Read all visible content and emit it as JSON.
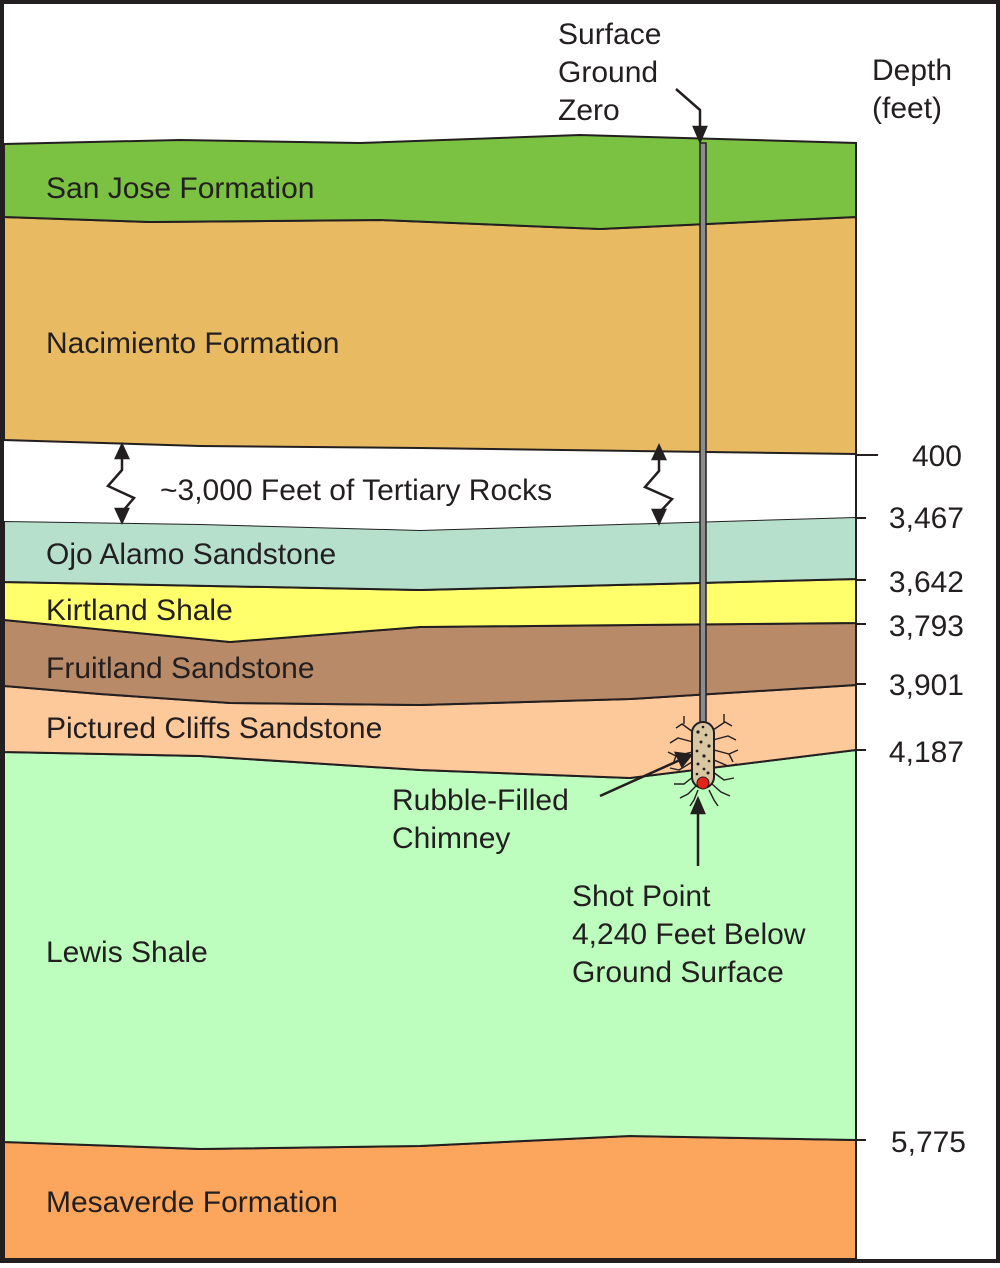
{
  "diagram": {
    "surface_label": [
      "Surface",
      "Ground",
      "Zero"
    ],
    "depth_header": [
      "Depth",
      "(feet)"
    ],
    "layers": [
      {
        "name": "San Jose Formation",
        "color": "#7cc242"
      },
      {
        "name": "Nacimiento Formation",
        "color": "#e8bb62"
      },
      {
        "name": "Ojo Alamo Sandstone",
        "color": "#b6dfcc"
      },
      {
        "name": "Kirtland Shale",
        "color": "#ffff6b"
      },
      {
        "name": "Fruitland Sandstone",
        "color": "#b98a67"
      },
      {
        "name": "Pictured Cliffs Sandstone",
        "color": "#fdc89a"
      },
      {
        "name": "Lewis Shale",
        "color": "#bdfdbd"
      },
      {
        "name": "Mesaverde Formation",
        "color": "#fba65c"
      }
    ],
    "gap_label": "~3,000 Feet of Tertiary Rocks",
    "depth_ticks": [
      "400",
      "3,467",
      "3,642",
      "3,793",
      "3,901",
      "4,187",
      "5,775"
    ],
    "chimney_label": [
      "Rubble-Filled",
      "Chimney"
    ],
    "shot_point_label": [
      "Shot Point",
      "4,240 Feet Below",
      "Ground Surface"
    ],
    "colors": {
      "outline": "#231f20",
      "shot_point": "#e2231a"
    }
  }
}
